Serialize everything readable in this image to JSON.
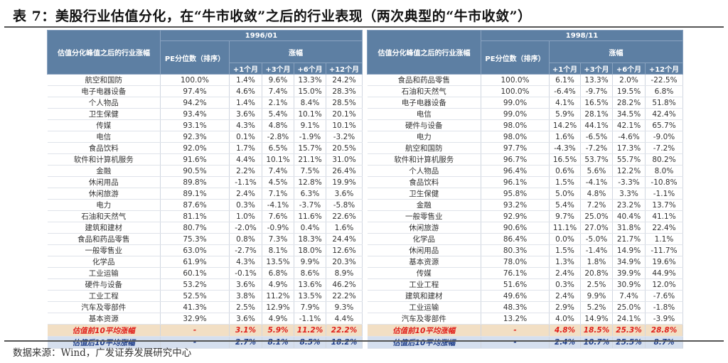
{
  "title": "表 7：美股行业估值分化，在“牛市收敛”之后的行业表现（两次典型的“牛市收敛”）",
  "source": "数据来源：Wind，广发证券发展研究中心",
  "headers": {
    "industry": "估值分化峰值之后的行业涨幅",
    "pe": "PE分位数（排序）",
    "change": "涨幅",
    "periods": [
      "+1个月",
      "+3个月",
      "+6个月",
      "+12个月"
    ]
  },
  "colors": {
    "header_bg": "#5d7fa3",
    "pre_row_bg": "#f2dfc4",
    "pre_row_text": "#e0201b",
    "post_row_bg": "#d5dfee",
    "post_row_text": "#1f3f8a"
  },
  "tables": [
    {
      "date": "1996/01",
      "rows": [
        [
          "航空和国防",
          "100.0%",
          "1.4%",
          "9.6%",
          "13.3%",
          "24.2%"
        ],
        [
          "电子电器设备",
          "97.4%",
          "4.6%",
          "7.4%",
          "15.0%",
          "28.3%"
        ],
        [
          "个人物品",
          "94.2%",
          "1.4%",
          "2.1%",
          "8.4%",
          "28.5%"
        ],
        [
          "卫生保健",
          "93.4%",
          "3.6%",
          "5.4%",
          "10.1%",
          "20.1%"
        ],
        [
          "传媒",
          "93.1%",
          "4.3%",
          "4.8%",
          "9.1%",
          "10.1%"
        ],
        [
          "电信",
          "92.3%",
          "0.1%",
          "-2.8%",
          "-1.9%",
          "-3.2%"
        ],
        [
          "食品饮料",
          "92.0%",
          "1.7%",
          "6.5%",
          "15.7%",
          "20.5%"
        ],
        [
          "软件和计算机服务",
          "91.6%",
          "4.4%",
          "10.1%",
          "21.1%",
          "31.0%"
        ],
        [
          "金融",
          "90.5%",
          "2.2%",
          "7.4%",
          "7.5%",
          "26.4%"
        ],
        [
          "休闲用品",
          "89.8%",
          "-1.1%",
          "4.5%",
          "12.8%",
          "19.9%"
        ],
        [
          "休闲旅游",
          "89.1%",
          "2.4%",
          "7.1%",
          "6.3%",
          "3.6%"
        ],
        [
          "电力",
          "87.6%",
          "0.3%",
          "-4.1%",
          "-3.7%",
          "-5.8%"
        ],
        [
          "石油和天然气",
          "81.1%",
          "1.0%",
          "7.6%",
          "11.6%",
          "22.6%"
        ],
        [
          "建筑和建材",
          "80.7%",
          "-2.0%",
          "-0.9%",
          "0.4%",
          "1.6%"
        ],
        [
          "食品和药品零售",
          "75.3%",
          "0.8%",
          "7.3%",
          "18.3%",
          "24.4%"
        ],
        [
          "一般零售业",
          "63.0%",
          "-2.7%",
          "8.1%",
          "18.0%",
          "12.6%"
        ],
        [
          "化学品",
          "61.9%",
          "4.3%",
          "13.5%",
          "9.9%",
          "20.3%"
        ],
        [
          "工业运输",
          "60.1%",
          "-0.1%",
          "6.8%",
          "8.6%",
          "8.9%"
        ],
        [
          "硬件与设备",
          "53.2%",
          "3.6%",
          "4.9%",
          "13.6%",
          "46.2%"
        ],
        [
          "工业工程",
          "52.5%",
          "3.8%",
          "11.2%",
          "13.5%",
          "22.2%"
        ],
        [
          "汽车及零部件",
          "41.3%",
          "2.5%",
          "12.9%",
          "7.9%",
          "9.3%"
        ],
        [
          "基本资源",
          "32.9%",
          "3.6%",
          "4.9%",
          "-1.1%",
          "4.4%"
        ]
      ],
      "pre": [
        "估值前10平均涨幅",
        "-",
        "3.1%",
        "5.9%",
        "11.2%",
        "22.2%"
      ],
      "post": [
        "估值后10平均涨幅",
        "-",
        "2.7%",
        "8.1%",
        "8.5%",
        "18.2%"
      ]
    },
    {
      "date": "1998/11",
      "rows": [
        [
          "食品和药品零售",
          "100.0%",
          "6.1%",
          "13.3%",
          "2.0%",
          "-22.5%"
        ],
        [
          "石油和天然气",
          "100.0%",
          "-6.4%",
          "-9.7%",
          "19.5%",
          "6.8%"
        ],
        [
          "电子电器设备",
          "99.0%",
          "4.1%",
          "16.5%",
          "28.2%",
          "51.8%"
        ],
        [
          "电信",
          "99.0%",
          "5.9%",
          "28.1%",
          "34.5%",
          "42.4%"
        ],
        [
          "硬件与设备",
          "98.0%",
          "14.2%",
          "44.1%",
          "42.1%",
          "65.7%"
        ],
        [
          "电力",
          "98.0%",
          "1.6%",
          "-6.5%",
          "-4.6%",
          "-9.0%"
        ],
        [
          "航空和国防",
          "97.7%",
          "-4.3%",
          "-7.2%",
          "17.3%",
          "-7.2%"
        ],
        [
          "软件和计算机服务",
          "96.7%",
          "16.5%",
          "53.7%",
          "55.7%",
          "80.2%"
        ],
        [
          "个人物品",
          "96.4%",
          "0.6%",
          "5.6%",
          "12.2%",
          "8.0%"
        ],
        [
          "食品饮料",
          "96.1%",
          "1.5%",
          "-4.1%",
          "-3.3%",
          "-10.8%"
        ],
        [
          "卫生保健",
          "95.8%",
          "5.0%",
          "4.8%",
          "3.3%",
          "-1.1%"
        ],
        [
          "金融",
          "93.2%",
          "5.4%",
          "7.2%",
          "23.2%",
          "13.7%"
        ],
        [
          "一般零售业",
          "92.9%",
          "9.7%",
          "25.0%",
          "40.4%",
          "41.1%"
        ],
        [
          "休闲旅游",
          "90.6%",
          "11.1%",
          "27.0%",
          "31.8%",
          "22.4%"
        ],
        [
          "化学品",
          "86.4%",
          "0.0%",
          "-5.0%",
          "21.7%",
          "1.1%"
        ],
        [
          "休闲用品",
          "80.3%",
          "1.5%",
          "-1.4%",
          "14.9%",
          "-11.7%"
        ],
        [
          "基本资源",
          "78.0%",
          "1.3%",
          "1.8%",
          "34.9%",
          "19.6%"
        ],
        [
          "传媒",
          "76.1%",
          "2.4%",
          "20.8%",
          "39.9%",
          "44.9%"
        ],
        [
          "工业工程",
          "51.6%",
          "0.3%",
          "2.5%",
          "30.9%",
          "12.0%"
        ],
        [
          "建筑和建材",
          "49.6%",
          "2.4%",
          "9.9%",
          "7.4%",
          "-7.6%"
        ],
        [
          "工业运输",
          "48.3%",
          "2.9%",
          "5.2%",
          "25.0%",
          "-1.8%"
        ],
        [
          "汽车及零部件",
          "13.2%",
          "4.0%",
          "14.9%",
          "24.1%",
          "-3.9%"
        ]
      ],
      "pre": [
        "估值前10平均涨幅",
        "-",
        "4.8%",
        "18.5%",
        "25.3%",
        "28.8%"
      ],
      "post": [
        "估值后10平均涨幅",
        "-",
        "2.4%",
        "10.7%",
        "25.5%",
        "8.7%"
      ]
    }
  ]
}
